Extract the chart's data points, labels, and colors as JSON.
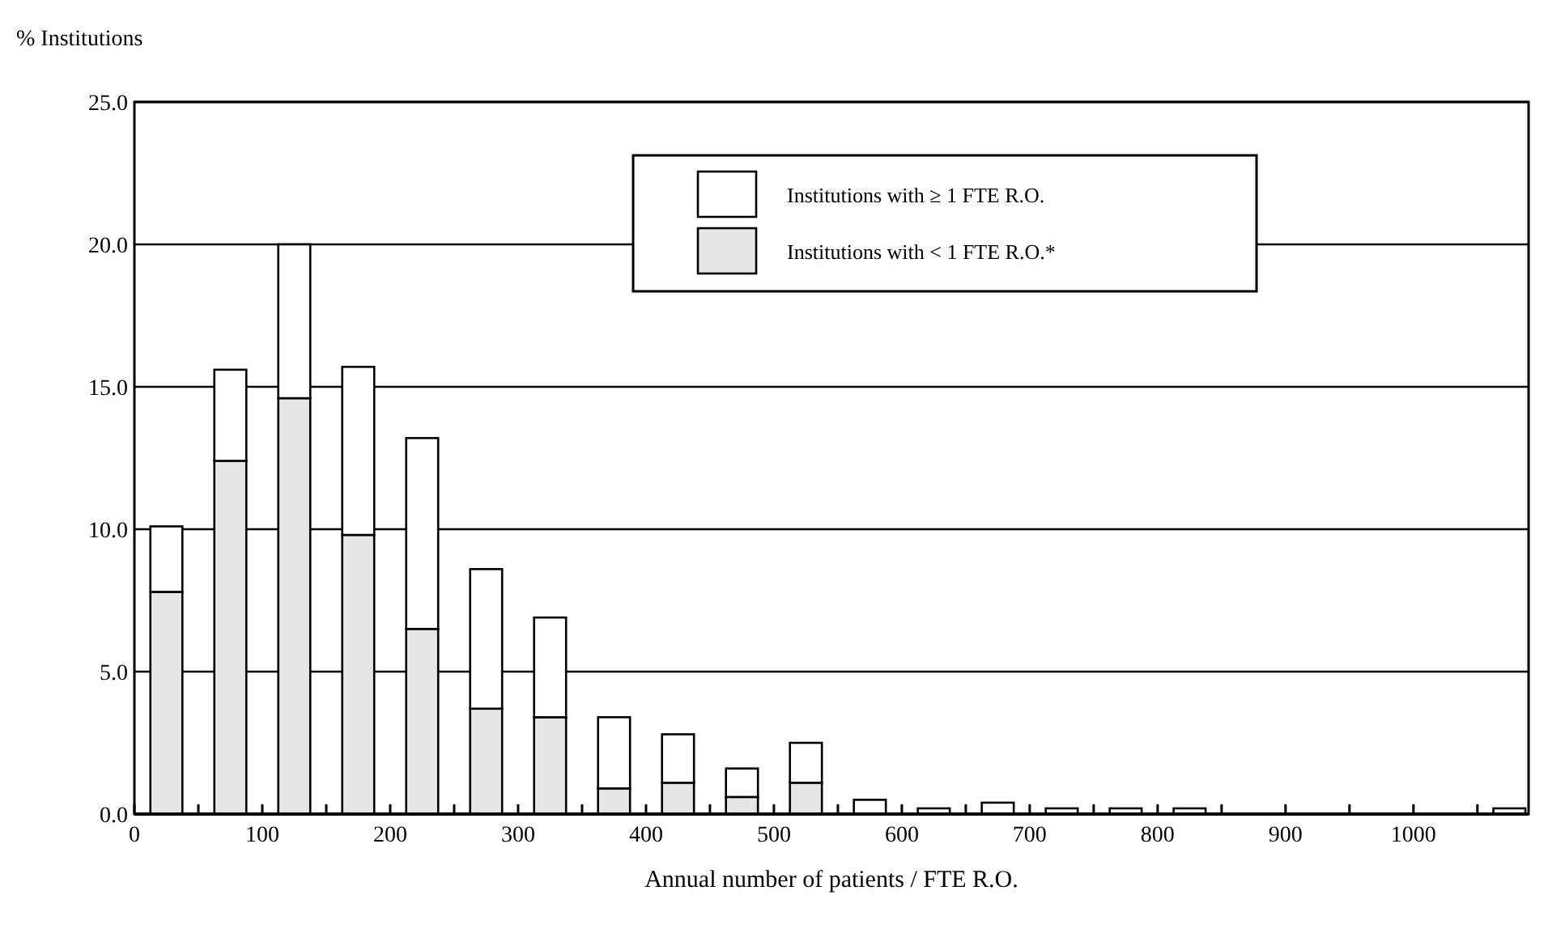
{
  "chart_data": {
    "type": "bar",
    "stacked": true,
    "xlabel": "Annual number of patients / FTE R.O.",
    "ylabel": "% Institutions",
    "x": [
      25,
      75,
      125,
      175,
      225,
      275,
      325,
      375,
      425,
      475,
      525,
      575,
      625,
      675,
      725,
      775,
      825,
      875,
      925,
      975,
      1025,
      1075
    ],
    "series": [
      {
        "name": "Institutions with < 1 FTE R.O.*",
        "color": "#e6e6e6",
        "values": [
          7.8,
          12.4,
          14.6,
          9.8,
          6.5,
          3.7,
          3.4,
          0.9,
          1.1,
          0.6,
          1.1,
          null,
          0,
          null,
          0,
          0,
          0,
          0,
          0,
          0,
          0,
          0
        ]
      },
      {
        "name": "Institutions with ≥ 1 FTE R.O.",
        "color": "#ffffff",
        "values": [
          2.3,
          3.2,
          5.4,
          5.9,
          6.7,
          4.9,
          3.5,
          2.5,
          1.7,
          1.0,
          1.4,
          0.5,
          0.2,
          0.4,
          0.2,
          0.2,
          0.2,
          0,
          0,
          0,
          0,
          0.2
        ]
      }
    ],
    "xlim": [
      0,
      1090
    ],
    "xticks": [
      0,
      {
        "value": 50,
        "label": null
      },
      100,
      {
        "value": 150,
        "label": null
      },
      200,
      {
        "value": 250,
        "label": null
      },
      300,
      {
        "value": 350,
        "label": null
      },
      400,
      {
        "value": 450,
        "label": null
      },
      500,
      {
        "value": 550,
        "label": null
      },
      600,
      {
        "value": 650,
        "label": null
      },
      700,
      {
        "value": 750,
        "label": null
      },
      800,
      {
        "value": 850,
        "label": null
      },
      900,
      {
        "value": 950,
        "label": null
      },
      1000,
      {
        "value": 1050,
        "label": null
      }
    ],
    "ylim": [
      0,
      25
    ],
    "yticks": [
      {
        "value": 0,
        "label": "0.0"
      },
      {
        "value": 5,
        "label": "5.0"
      },
      {
        "value": 10,
        "label": "10.0"
      },
      {
        "value": 15,
        "label": "15.0"
      },
      {
        "value": 20,
        "label": "20.0"
      },
      {
        "value": 25,
        "label": "25.0"
      }
    ],
    "grid": "y",
    "legend": "top"
  }
}
